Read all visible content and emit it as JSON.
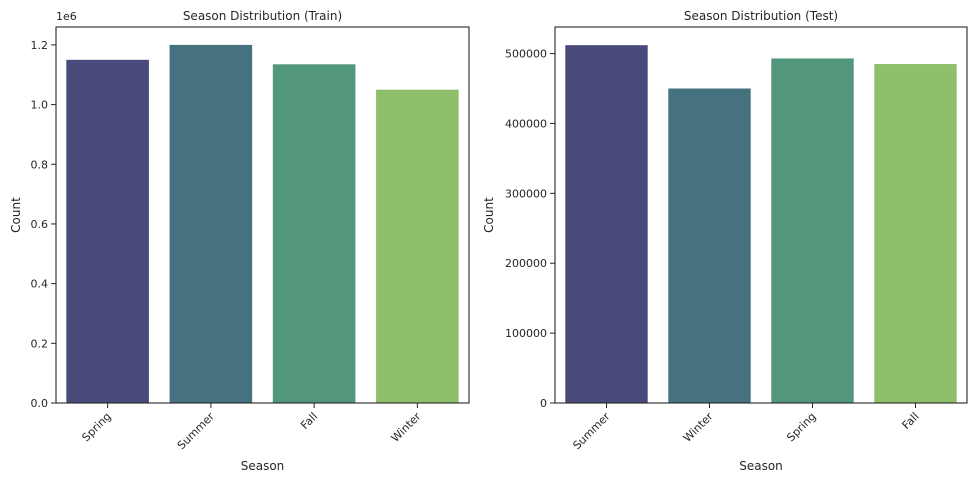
{
  "chart_data": [
    {
      "type": "bar",
      "title": "Season Distribution (Train)",
      "xlabel": "Season",
      "ylabel": "Count",
      "categories": [
        "Spring",
        "Summer",
        "Fall",
        "Winter"
      ],
      "values": [
        1150000,
        1200000,
        1135000,
        1050000
      ],
      "colors": [
        "#4a4a7a",
        "#46717f",
        "#52967c",
        "#8ec06c"
      ],
      "ylim": [
        0,
        1260000
      ],
      "yticks": [
        0,
        200000,
        400000,
        600000,
        800000,
        1000000,
        1200000
      ],
      "ytick_labels": [
        "0.0",
        "0.2",
        "0.4",
        "0.6",
        "0.8",
        "1.0",
        "1.2"
      ],
      "offset_text": "1e6",
      "grid": false
    },
    {
      "type": "bar",
      "title": "Season Distribution (Test)",
      "xlabel": "Season",
      "ylabel": "Count",
      "categories": [
        "Summer",
        "Winter",
        "Spring",
        "Fall"
      ],
      "values": [
        512000,
        450000,
        493000,
        485000
      ],
      "colors": [
        "#4a4a7a",
        "#46717f",
        "#52967c",
        "#8ec06c"
      ],
      "ylim": [
        0,
        538000
      ],
      "yticks": [
        0,
        100000,
        200000,
        300000,
        400000,
        500000
      ],
      "ytick_labels": [
        "0",
        "100000",
        "200000",
        "300000",
        "400000",
        "500000"
      ],
      "offset_text": "",
      "grid": false
    }
  ]
}
